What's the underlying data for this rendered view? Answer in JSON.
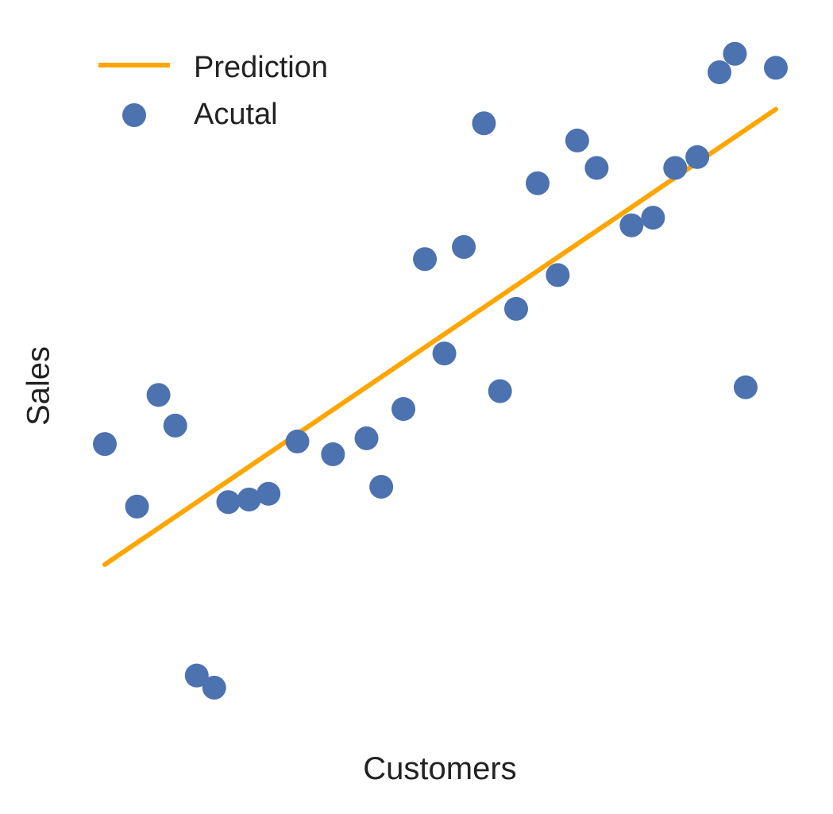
{
  "chart_data": {
    "type": "scatter",
    "title": "",
    "xlabel": "Customers",
    "ylabel": "Sales",
    "grid": false,
    "axes_visible": false,
    "legend_placement": "top-left",
    "xlim": [
      0,
      100
    ],
    "ylim": [
      0,
      100
    ],
    "series": [
      {
        "name": "Prediction",
        "kind": "line",
        "color": "#FFA500",
        "x": [
          0,
          100
        ],
        "y": [
          22.8,
          94.2
        ]
      },
      {
        "name": "Acutal",
        "kind": "scatter",
        "color": "#4C72B0",
        "x": [
          0,
          4.8,
          8,
          10.5,
          13.7,
          16.3,
          18.4,
          21.5,
          24.4,
          28.7,
          34,
          39,
          41.2,
          44.5,
          47.7,
          50.6,
          53.5,
          56.5,
          58.9,
          61.3,
          64.5,
          67.5,
          70.4,
          73.3,
          78.5,
          81.7,
          85,
          88.3,
          91.6,
          93.9,
          95.5,
          100
        ],
        "y": [
          41.7,
          31.9,
          49.4,
          44.6,
          5.4,
          3.5,
          32.6,
          33.0,
          33.9,
          42.1,
          40.1,
          42.6,
          35.0,
          47.2,
          70.7,
          55.9,
          72.6,
          92.0,
          50.0,
          62.9,
          82.6,
          68.2,
          89.3,
          85.0,
          76.0,
          77.2,
          85.0,
          86.7,
          100,
          102.9,
          50.6,
          100.7
        ]
      }
    ]
  }
}
